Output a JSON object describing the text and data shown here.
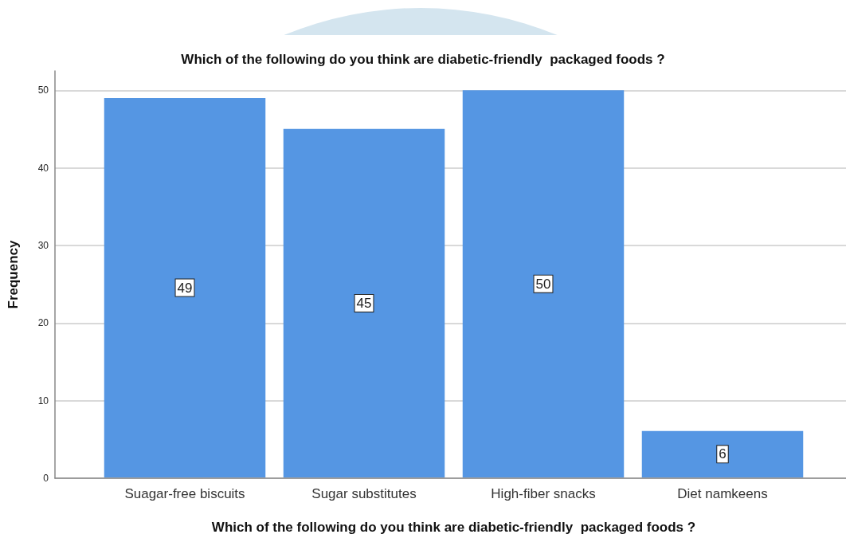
{
  "chart_data": {
    "type": "bar",
    "title": "Which of the following do you think are diabetic-friendly  packaged foods ?",
    "xlabel": "Which of the following do you think are diabetic-friendly  packaged foods ?",
    "ylabel": "Frequency",
    "categories": [
      "Suagar-free biscuits",
      "Sugar substitutes",
      "High-fiber snacks",
      "Diet namkeens"
    ],
    "values": [
      49,
      45,
      50,
      6
    ],
    "color": "#5596e3",
    "ylim": [
      0,
      52.5
    ],
    "yticks": [
      0,
      10,
      20,
      30,
      40,
      50
    ],
    "grid": "y",
    "data_labels": true
  }
}
